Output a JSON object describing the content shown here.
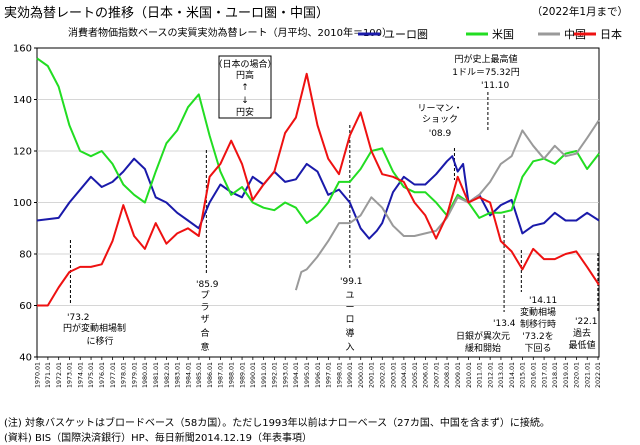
{
  "title": "実効為替レートの推移（日本・米国・ユーロ圏・中国）",
  "subtitle": "消費者物価指数ベースの実質実効為替レート（月平均、2010年＝100）",
  "as_of": "（2022年1月まで）",
  "notes": [
    "(注) 対象バスケットはブロードベース（58カ国）。ただし1993年以前はナローベース（27カ国、中国を含まず）に接続。",
    "(資料) BIS（国際決済銀行）HP、毎日新聞2014.12.19（年表事項）"
  ],
  "chart_data": {
    "type": "line",
    "title": "実効為替レートの推移（日本・米国・ユーロ圏・中国）",
    "ylabel": "",
    "xlabel": "",
    "ylim": [
      40,
      160
    ],
    "xlim": [
      1970.0,
      2022.1
    ],
    "yticks": [
      40,
      60,
      80,
      100,
      120,
      140,
      160
    ],
    "xtick_labels": [
      "1970.01",
      "1971.01",
      "1972.01",
      "1973.01",
      "1974.01",
      "1975.01",
      "1976.01",
      "1977.01",
      "1978.01",
      "1979.01",
      "1980.01",
      "1981.01",
      "1982.01",
      "1983.01",
      "1984.01",
      "1985.01",
      "1986.01",
      "1987.01",
      "1988.01",
      "1989.01",
      "1990.01",
      "1991.01",
      "1992.01",
      "1993.01",
      "1994.01",
      "1995.01",
      "1996.01",
      "1997.01",
      "1998.01",
      "1999.01",
      "2000.01",
      "2001.01",
      "2002.01",
      "2003.01",
      "2004.01",
      "2005.01",
      "2006.01",
      "2007.01",
      "2008.01",
      "2009.01",
      "2010.01",
      "2011.01",
      "2012.01",
      "2013.01",
      "2014.01",
      "2015.01",
      "2016.01",
      "2017.01",
      "2018.01",
      "2019.01",
      "2020.01",
      "2021.01",
      "2022.01"
    ],
    "legend_position": "top-right",
    "series": [
      {
        "name": "ユーロ圏",
        "color": "#1a1aaa",
        "points": [
          [
            1970.0,
            93
          ],
          [
            1972.0,
            94
          ],
          [
            1973.0,
            100
          ],
          [
            1975.0,
            110
          ],
          [
            1976.0,
            106
          ],
          [
            1977.0,
            108
          ],
          [
            1978.0,
            112
          ],
          [
            1979.0,
            117
          ],
          [
            1980.0,
            113
          ],
          [
            1981.0,
            102
          ],
          [
            1982.0,
            100
          ],
          [
            1983.0,
            96
          ],
          [
            1984.0,
            93
          ],
          [
            1985.0,
            90
          ],
          [
            1986.0,
            100
          ],
          [
            1987.0,
            107
          ],
          [
            1988.0,
            104
          ],
          [
            1989.0,
            102
          ],
          [
            1990.0,
            110
          ],
          [
            1991.0,
            107
          ],
          [
            1992.0,
            112
          ],
          [
            1993.0,
            108
          ],
          [
            1994.0,
            109
          ],
          [
            1995.0,
            115
          ],
          [
            1996.0,
            112
          ],
          [
            1997.0,
            103
          ],
          [
            1998.0,
            105
          ],
          [
            1999.0,
            100
          ],
          [
            2000.0,
            90
          ],
          [
            2000.8,
            86
          ],
          [
            2001.5,
            89
          ],
          [
            2002.0,
            92
          ],
          [
            2003.0,
            104
          ],
          [
            2004.0,
            110
          ],
          [
            2005.0,
            107
          ],
          [
            2006.0,
            107
          ],
          [
            2007.0,
            111
          ],
          [
            2008.0,
            116
          ],
          [
            2008.5,
            118
          ],
          [
            2009.0,
            112
          ],
          [
            2009.5,
            115
          ],
          [
            2010.0,
            100
          ],
          [
            2011.0,
            103
          ],
          [
            2012.0,
            95
          ],
          [
            2013.0,
            99
          ],
          [
            2014.0,
            101
          ],
          [
            2015.0,
            88
          ],
          [
            2016.0,
            91
          ],
          [
            2017.0,
            92
          ],
          [
            2018.0,
            96
          ],
          [
            2019.0,
            93
          ],
          [
            2020.0,
            93
          ],
          [
            2021.0,
            96
          ],
          [
            2022.1,
            93
          ]
        ]
      },
      {
        "name": "米国",
        "color": "#22dd22",
        "points": [
          [
            1970.0,
            156
          ],
          [
            1971.0,
            153
          ],
          [
            1972.0,
            145
          ],
          [
            1973.0,
            130
          ],
          [
            1974.0,
            120
          ],
          [
            1975.0,
            118
          ],
          [
            1976.0,
            120
          ],
          [
            1977.0,
            115
          ],
          [
            1978.0,
            107
          ],
          [
            1979.0,
            103
          ],
          [
            1980.0,
            100
          ],
          [
            1981.0,
            112
          ],
          [
            1982.0,
            123
          ],
          [
            1983.0,
            128
          ],
          [
            1984.0,
            137
          ],
          [
            1985.0,
            142
          ],
          [
            1986.0,
            126
          ],
          [
            1987.0,
            112
          ],
          [
            1988.0,
            103
          ],
          [
            1989.0,
            106
          ],
          [
            1990.0,
            100
          ],
          [
            1991.0,
            98
          ],
          [
            1992.0,
            97
          ],
          [
            1993.0,
            100
          ],
          [
            1994.0,
            98
          ],
          [
            1995.0,
            92
          ],
          [
            1996.0,
            95
          ],
          [
            1997.0,
            100
          ],
          [
            1998.0,
            108
          ],
          [
            1999.0,
            108
          ],
          [
            2000.0,
            113
          ],
          [
            2001.0,
            120
          ],
          [
            2002.0,
            121
          ],
          [
            2003.0,
            112
          ],
          [
            2004.0,
            106
          ],
          [
            2005.0,
            104
          ],
          [
            2006.0,
            104
          ],
          [
            2007.0,
            100
          ],
          [
            2008.0,
            95
          ],
          [
            2009.0,
            103
          ],
          [
            2010.0,
            100
          ],
          [
            2011.0,
            94
          ],
          [
            2012.0,
            96
          ],
          [
            2013.0,
            96
          ],
          [
            2014.0,
            97
          ],
          [
            2015.0,
            110
          ],
          [
            2016.0,
            116
          ],
          [
            2017.0,
            117
          ],
          [
            2018.0,
            115
          ],
          [
            2019.0,
            119
          ],
          [
            2020.0,
            120
          ],
          [
            2021.0,
            113
          ],
          [
            2022.1,
            119
          ]
        ]
      },
      {
        "name": "中国",
        "color": "#9a9a9a",
        "points": [
          [
            1994.0,
            66
          ],
          [
            1994.5,
            73
          ],
          [
            1995.0,
            74
          ],
          [
            1996.0,
            79
          ],
          [
            1997.0,
            85
          ],
          [
            1998.0,
            92
          ],
          [
            1999.0,
            92
          ],
          [
            2000.0,
            95
          ],
          [
            2001.0,
            102
          ],
          [
            2002.0,
            98
          ],
          [
            2003.0,
            91
          ],
          [
            2004.0,
            87
          ],
          [
            2005.0,
            87
          ],
          [
            2006.0,
            88
          ],
          [
            2007.0,
            89
          ],
          [
            2008.0,
            94
          ],
          [
            2009.0,
            102
          ],
          [
            2010.0,
            100
          ],
          [
            2011.0,
            103
          ],
          [
            2012.0,
            108
          ],
          [
            2013.0,
            115
          ],
          [
            2014.0,
            118
          ],
          [
            2015.0,
            128
          ],
          [
            2016.0,
            122
          ],
          [
            2017.0,
            117
          ],
          [
            2018.0,
            122
          ],
          [
            2019.0,
            118
          ],
          [
            2020.0,
            119
          ],
          [
            2021.0,
            125
          ],
          [
            2022.1,
            132
          ]
        ]
      },
      {
        "name": "日本",
        "color": "#ee1111",
        "points": [
          [
            1970.0,
            60
          ],
          [
            1971.0,
            60
          ],
          [
            1972.0,
            67
          ],
          [
            1973.0,
            73
          ],
          [
            1974.0,
            75
          ],
          [
            1975.0,
            75
          ],
          [
            1976.0,
            76
          ],
          [
            1977.0,
            85
          ],
          [
            1978.0,
            99
          ],
          [
            1979.0,
            87
          ],
          [
            1980.0,
            82
          ],
          [
            1981.0,
            92
          ],
          [
            1982.0,
            84
          ],
          [
            1983.0,
            88
          ],
          [
            1984.0,
            90
          ],
          [
            1985.0,
            87
          ],
          [
            1986.0,
            110
          ],
          [
            1987.0,
            115
          ],
          [
            1988.0,
            124
          ],
          [
            1989.0,
            115
          ],
          [
            1990.0,
            101
          ],
          [
            1991.0,
            107
          ],
          [
            1992.0,
            112
          ],
          [
            1993.0,
            127
          ],
          [
            1994.0,
            133
          ],
          [
            1995.0,
            150
          ],
          [
            1996.0,
            130
          ],
          [
            1997.0,
            117
          ],
          [
            1998.0,
            111
          ],
          [
            1999.0,
            126
          ],
          [
            2000.0,
            135
          ],
          [
            2001.0,
            120
          ],
          [
            2002.0,
            111
          ],
          [
            2003.0,
            110
          ],
          [
            2004.0,
            108
          ],
          [
            2005.0,
            100
          ],
          [
            2006.0,
            95
          ],
          [
            2007.0,
            86
          ],
          [
            2008.0,
            95
          ],
          [
            2009.0,
            110
          ],
          [
            2010.0,
            100
          ],
          [
            2011.0,
            102
          ],
          [
            2012.0,
            100
          ],
          [
            2013.0,
            85
          ],
          [
            2014.0,
            81
          ],
          [
            2015.0,
            74
          ],
          [
            2016.0,
            82
          ],
          [
            2017.0,
            78
          ],
          [
            2018.0,
            78
          ],
          [
            2019.0,
            80
          ],
          [
            2020.0,
            81
          ],
          [
            2021.0,
            75
          ],
          [
            2022.1,
            68
          ]
        ]
      }
    ],
    "annotations": [
      {
        "text": "（日本の場合）",
        "kind": "box"
      },
      {
        "text": "円高",
        "kind": "box"
      },
      {
        "text": "↑",
        "kind": "box"
      },
      {
        "text": "↓",
        "kind": "box"
      },
      {
        "text": "円安",
        "kind": "box"
      },
      {
        "text": "'73.2",
        "year": 1973.1
      },
      {
        "text": "円が変動相場制",
        "year": 1973.1
      },
      {
        "text": "に移行",
        "year": 1973.1
      },
      {
        "text": "'85.9",
        "year": 1985.7
      },
      {
        "text": "プ",
        "year": 1985.7
      },
      {
        "text": "ラ",
        "year": 1985.7
      },
      {
        "text": "ザ",
        "year": 1985.7
      },
      {
        "text": "合",
        "year": 1985.7
      },
      {
        "text": "意",
        "year": 1985.7
      },
      {
        "text": "'99.1",
        "year": 1999.0
      },
      {
        "text": "ユ",
        "year": 1999.0
      },
      {
        "text": "ー",
        "year": 1999.0
      },
      {
        "text": "ロ",
        "year": 1999.0
      },
      {
        "text": "導",
        "year": 1999.0
      },
      {
        "text": "入",
        "year": 1999.0
      },
      {
        "text": "リーマン・",
        "year": 2008.7
      },
      {
        "text": "ショック",
        "year": 2008.7
      },
      {
        "text": "'08.9",
        "year": 2008.7
      },
      {
        "text": "円が史上最高値",
        "year": 2011.8
      },
      {
        "text": "1ドル＝75.32円",
        "year": 2011.8
      },
      {
        "text": "'11.10",
        "year": 2011.8
      },
      {
        "text": "日銀が異次元",
        "year": 2013.3
      },
      {
        "text": "緩和開始",
        "year": 2013.3
      },
      {
        "text": "'13.4",
        "year": 2013.3
      },
      {
        "text": "'14.11",
        "year": 2014.9
      },
      {
        "text": "変動相場",
        "year": 2014.9
      },
      {
        "text": "制移行時",
        "year": 2014.9
      },
      {
        "text": "'73.2を",
        "year": 2014.9
      },
      {
        "text": "下回る",
        "year": 2014.9
      },
      {
        "text": "'22.1",
        "year": 2022.0
      },
      {
        "text": "過去",
        "year": 2022.0
      },
      {
        "text": "最低値",
        "year": 2022.0
      }
    ]
  }
}
